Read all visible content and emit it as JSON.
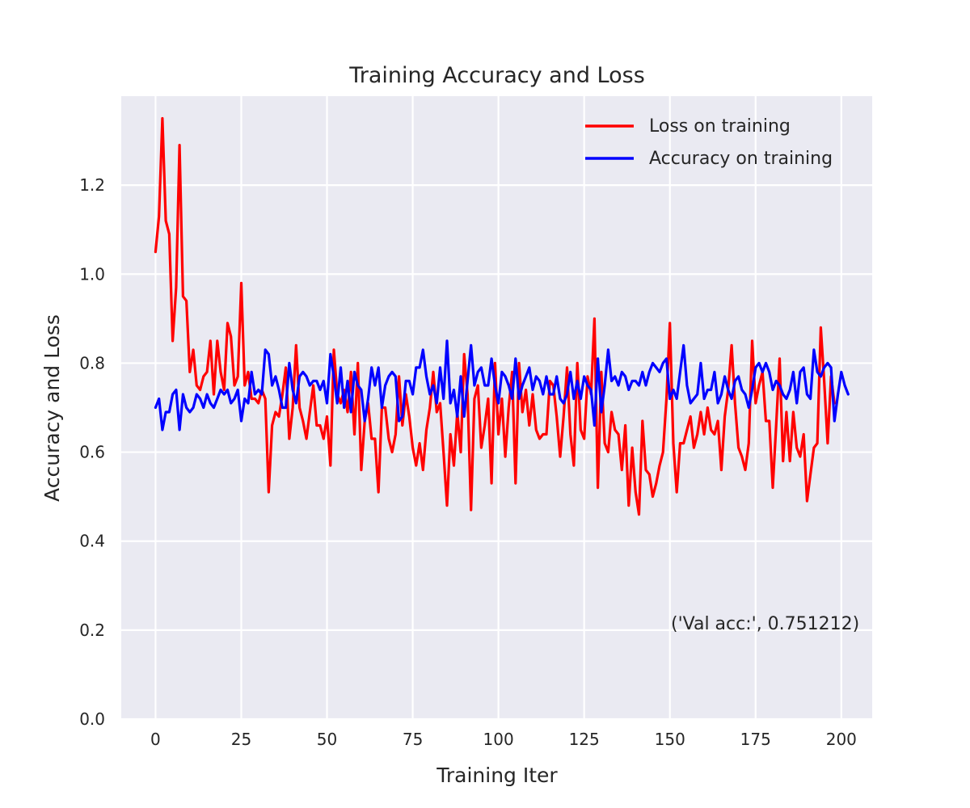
{
  "chart_data": {
    "type": "line",
    "title": "Training Accuracy and Loss",
    "xlabel": "Training Iter",
    "ylabel": "Accuracy and Loss",
    "xlim": [
      -10,
      209
    ],
    "ylim": [
      0,
      1.4
    ],
    "xticks": [
      0,
      25,
      50,
      75,
      100,
      125,
      150,
      175,
      200
    ],
    "yticks": [
      0.0,
      0.2,
      0.4,
      0.6,
      0.8,
      1.0,
      1.2
    ],
    "ytick_labels": [
      "0.0",
      "0.2",
      "0.4",
      "0.6",
      "0.8",
      "1.0",
      "1.2"
    ],
    "grid": true,
    "background": "#eaeaf2",
    "legend_position": "top-right",
    "annotation": "('Val acc:', 0.751212)",
    "series": [
      {
        "name": "Loss on training",
        "color": "#ff0000",
        "values": [
          1.05,
          1.13,
          1.35,
          1.12,
          1.09,
          0.85,
          0.97,
          1.29,
          0.95,
          0.94,
          0.78,
          0.83,
          0.75,
          0.74,
          0.77,
          0.78,
          0.85,
          0.73,
          0.85,
          0.78,
          0.74,
          0.89,
          0.86,
          0.75,
          0.77,
          0.98,
          0.75,
          0.78,
          0.72,
          0.72,
          0.71,
          0.74,
          0.72,
          0.51,
          0.66,
          0.69,
          0.68,
          0.73,
          0.79,
          0.63,
          0.7,
          0.84,
          0.7,
          0.67,
          0.63,
          0.69,
          0.75,
          0.66,
          0.66,
          0.63,
          0.68,
          0.57,
          0.83,
          0.73,
          0.71,
          0.74,
          0.69,
          0.78,
          0.64,
          0.8,
          0.56,
          0.67,
          0.71,
          0.63,
          0.63,
          0.51,
          0.7,
          0.7,
          0.63,
          0.6,
          0.64,
          0.77,
          0.66,
          0.73,
          0.68,
          0.61,
          0.57,
          0.62,
          0.56,
          0.65,
          0.7,
          0.78,
          0.69,
          0.71,
          0.6,
          0.48,
          0.64,
          0.57,
          0.69,
          0.6,
          0.82,
          0.73,
          0.47,
          0.72,
          0.75,
          0.61,
          0.66,
          0.72,
          0.53,
          0.8,
          0.64,
          0.72,
          0.59,
          0.7,
          0.78,
          0.53,
          0.8,
          0.69,
          0.74,
          0.66,
          0.73,
          0.65,
          0.63,
          0.64,
          0.64,
          0.76,
          0.75,
          0.68,
          0.59,
          0.68,
          0.79,
          0.64,
          0.57,
          0.8,
          0.65,
          0.63,
          0.77,
          0.73,
          0.9,
          0.52,
          0.78,
          0.62,
          0.6,
          0.69,
          0.65,
          0.64,
          0.56,
          0.66,
          0.48,
          0.61,
          0.51,
          0.46,
          0.67,
          0.56,
          0.55,
          0.5,
          0.53,
          0.57,
          0.6,
          0.72,
          0.89,
          0.62,
          0.51,
          0.62,
          0.62,
          0.65,
          0.68,
          0.61,
          0.64,
          0.69,
          0.64,
          0.7,
          0.65,
          0.64,
          0.67,
          0.56,
          0.68,
          0.74,
          0.84,
          0.71,
          0.61,
          0.59,
          0.56,
          0.62,
          0.85,
          0.71,
          0.75,
          0.78,
          0.67,
          0.67,
          0.52,
          0.66,
          0.81,
          0.58,
          0.69,
          0.58,
          0.69,
          0.61,
          0.59,
          0.64,
          0.49,
          0.55,
          0.61,
          0.62,
          0.88,
          0.76,
          0.62,
          0.77,
          0.71
        ]
      },
      {
        "name": "Accuracy on training",
        "color": "#0000ff",
        "values": [
          0.7,
          0.72,
          0.65,
          0.69,
          0.69,
          0.73,
          0.74,
          0.65,
          0.73,
          0.7,
          0.69,
          0.7,
          0.73,
          0.72,
          0.7,
          0.73,
          0.71,
          0.7,
          0.72,
          0.74,
          0.73,
          0.74,
          0.71,
          0.72,
          0.74,
          0.67,
          0.72,
          0.71,
          0.78,
          0.73,
          0.74,
          0.73,
          0.83,
          0.82,
          0.75,
          0.77,
          0.74,
          0.7,
          0.7,
          0.8,
          0.74,
          0.71,
          0.77,
          0.78,
          0.77,
          0.75,
          0.76,
          0.76,
          0.74,
          0.76,
          0.71,
          0.82,
          0.77,
          0.71,
          0.79,
          0.7,
          0.76,
          0.69,
          0.78,
          0.75,
          0.74,
          0.67,
          0.72,
          0.79,
          0.75,
          0.79,
          0.7,
          0.75,
          0.77,
          0.78,
          0.77,
          0.67,
          0.68,
          0.76,
          0.76,
          0.73,
          0.79,
          0.79,
          0.83,
          0.77,
          0.73,
          0.75,
          0.71,
          0.79,
          0.72,
          0.85,
          0.71,
          0.74,
          0.68,
          0.77,
          0.68,
          0.76,
          0.84,
          0.75,
          0.78,
          0.79,
          0.75,
          0.75,
          0.81,
          0.75,
          0.71,
          0.78,
          0.77,
          0.75,
          0.72,
          0.81,
          0.72,
          0.75,
          0.77,
          0.79,
          0.74,
          0.77,
          0.76,
          0.73,
          0.77,
          0.73,
          0.73,
          0.77,
          0.72,
          0.71,
          0.73,
          0.78,
          0.72,
          0.76,
          0.72,
          0.77,
          0.75,
          0.74,
          0.66,
          0.81,
          0.69,
          0.75,
          0.83,
          0.76,
          0.77,
          0.75,
          0.78,
          0.77,
          0.74,
          0.76,
          0.76,
          0.75,
          0.78,
          0.75,
          0.78,
          0.8,
          0.79,
          0.78,
          0.8,
          0.81,
          0.72,
          0.74,
          0.72,
          0.78,
          0.84,
          0.75,
          0.71,
          0.72,
          0.73,
          0.8,
          0.72,
          0.74,
          0.74,
          0.78,
          0.71,
          0.73,
          0.77,
          0.74,
          0.72,
          0.76,
          0.77,
          0.74,
          0.73,
          0.7,
          0.74,
          0.79,
          0.8,
          0.78,
          0.8,
          0.78,
          0.74,
          0.76,
          0.75,
          0.73,
          0.72,
          0.74,
          0.78,
          0.71,
          0.78,
          0.79,
          0.73,
          0.72,
          0.83,
          0.78,
          0.77,
          0.79,
          0.8,
          0.79,
          0.67,
          0.73,
          0.78,
          0.75,
          0.73
        ]
      }
    ]
  }
}
